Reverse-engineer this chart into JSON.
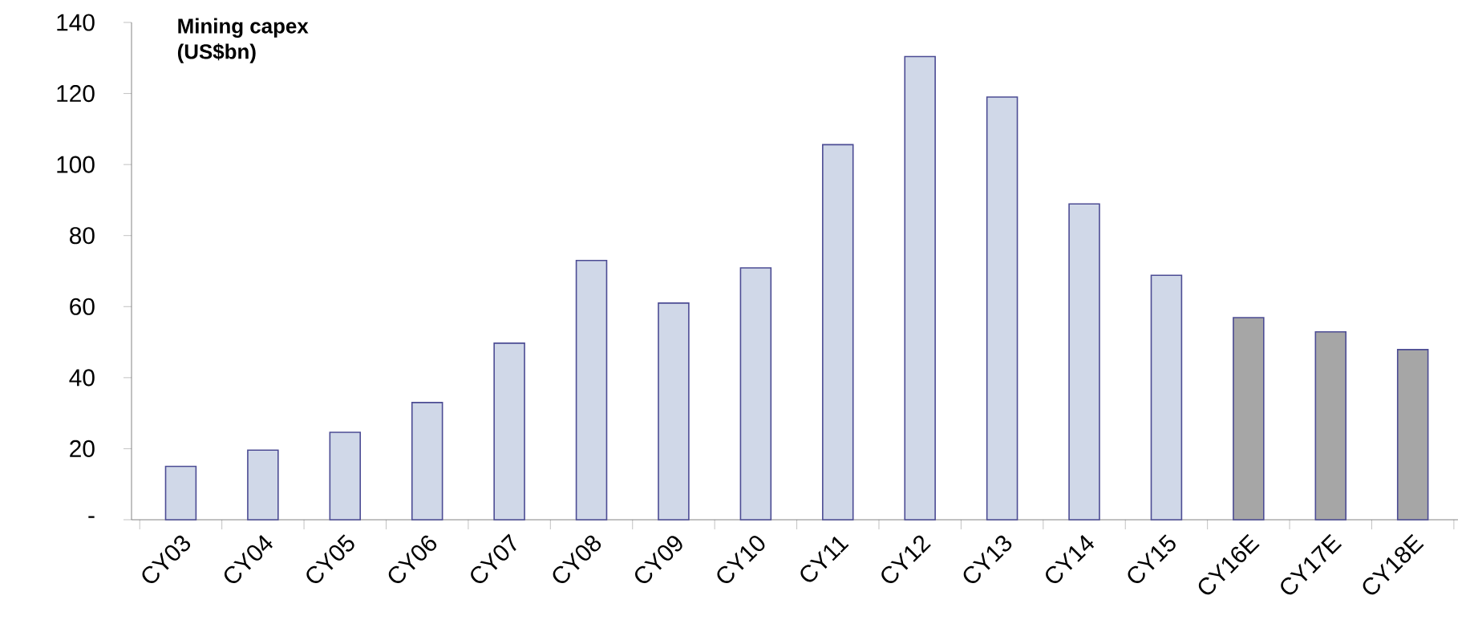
{
  "chart_data": {
    "type": "bar",
    "title": "Mining capex",
    "subtitle": "(US$bn)",
    "categories": [
      "CY03",
      "CY04",
      "CY05",
      "CY06",
      "CY07",
      "CY08",
      "CY09",
      "CY10",
      "CY11",
      "CY12",
      "CY13",
      "CY14",
      "CY15",
      "CY16E",
      "CY17E",
      "CY18E"
    ],
    "values": [
      15,
      19.6,
      24.6,
      33,
      49.7,
      73,
      61,
      70.9,
      105.6,
      130.4,
      119,
      88.9,
      68.8,
      56.9,
      52.9,
      47.9
    ],
    "colors": [
      "#d0d8e8",
      "#d0d8e8",
      "#d0d8e8",
      "#d0d8e8",
      "#d0d8e8",
      "#d0d8e8",
      "#d0d8e8",
      "#d0d8e8",
      "#d0d8e8",
      "#d0d8e8",
      "#d0d8e8",
      "#d0d8e8",
      "#d0d8e8",
      "#a6a6a6",
      "#a6a6a6",
      "#a6a6a6"
    ],
    "ylim": [
      0,
      140
    ],
    "yticks": [
      {
        "value": 0,
        "label": "-"
      },
      20,
      40,
      60,
      80,
      100,
      120,
      140
    ],
    "grid": false
  }
}
